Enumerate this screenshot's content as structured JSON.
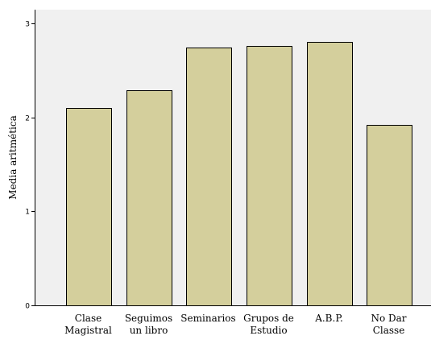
{
  "chart_data": {
    "type": "bar",
    "title": "",
    "xlabel": "",
    "ylabel": "Media aritmética",
    "categories": [
      [
        "Clase",
        "Magistral"
      ],
      [
        "Seguimos",
        "un libro"
      ],
      [
        "Seminarios"
      ],
      [
        "Grupos de",
        "Estudio"
      ],
      [
        "A.B.P."
      ],
      [
        "No Dar",
        "Classe"
      ]
    ],
    "values": [
      2.1,
      2.29,
      2.75,
      2.76,
      2.81,
      1.92
    ],
    "ylim": [
      0,
      3.15
    ],
    "yticks": [
      "0",
      "1",
      "2",
      "3"
    ],
    "grid": false,
    "colors": {
      "plot_background": "#f0f0f0",
      "bar_fill": "#d4cf9c",
      "bar_stroke": "#000000"
    }
  }
}
